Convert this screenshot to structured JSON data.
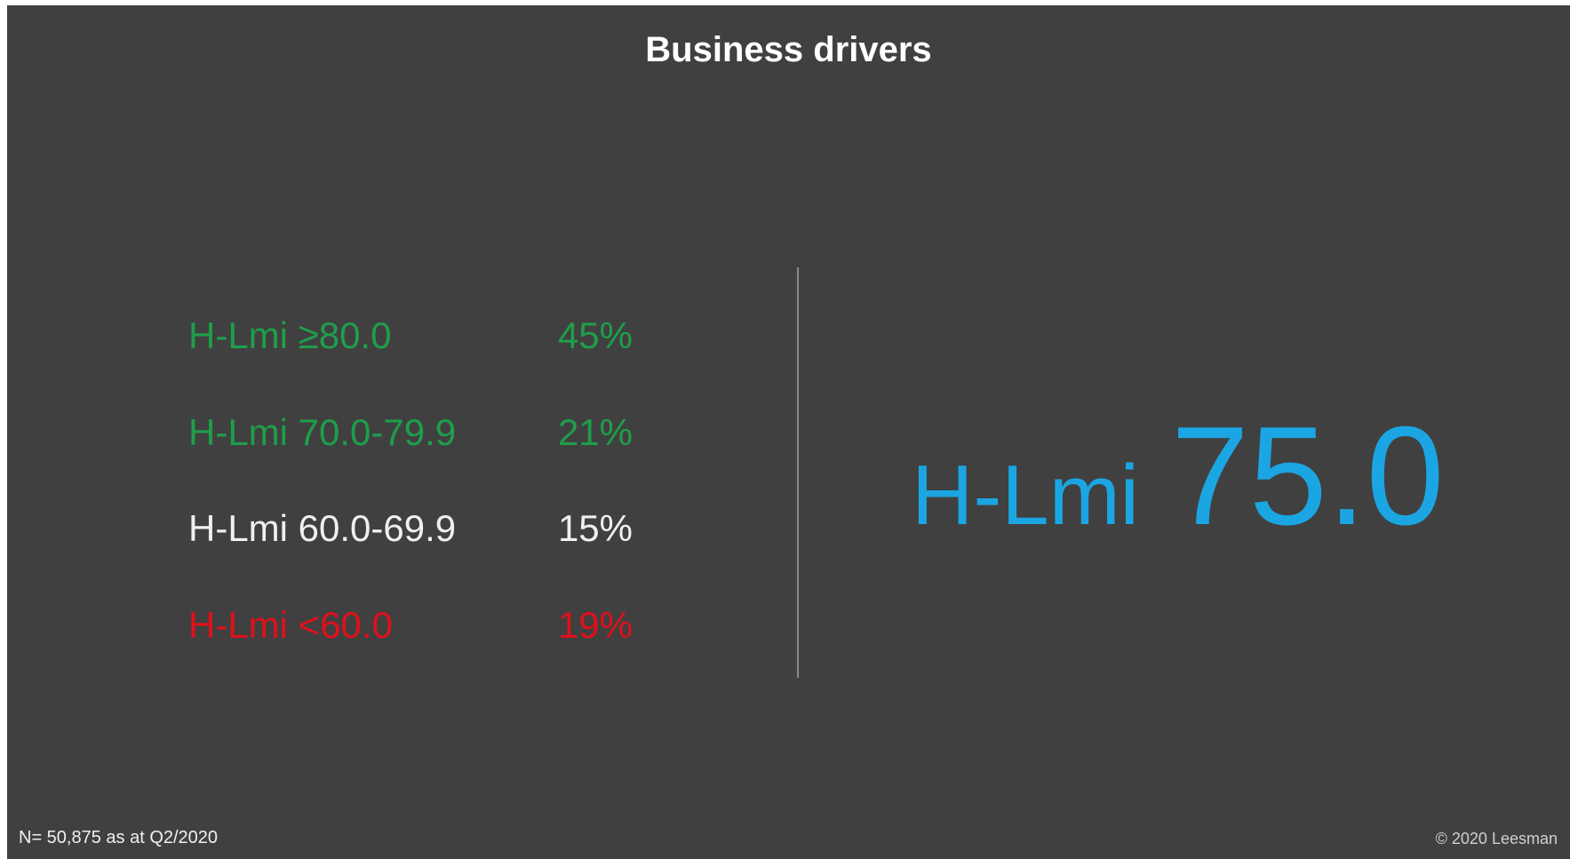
{
  "header": {
    "title": "Business drivers"
  },
  "rows": [
    {
      "label": "H-Lmi ≥80.0",
      "value": "45%"
    },
    {
      "label": "H-Lmi 70.0-79.9",
      "value": "21%"
    },
    {
      "label": "H-Lmi 60.0-69.9",
      "value": "15%"
    },
    {
      "label": "H-Lmi <60.0",
      "value": "19%"
    }
  ],
  "headline": {
    "prefix": "H-Lmi",
    "value": "75.0"
  },
  "footer": {
    "note": "N= 50,875 as at Q2/2020",
    "copyright": "© 2020 Leesman"
  }
}
